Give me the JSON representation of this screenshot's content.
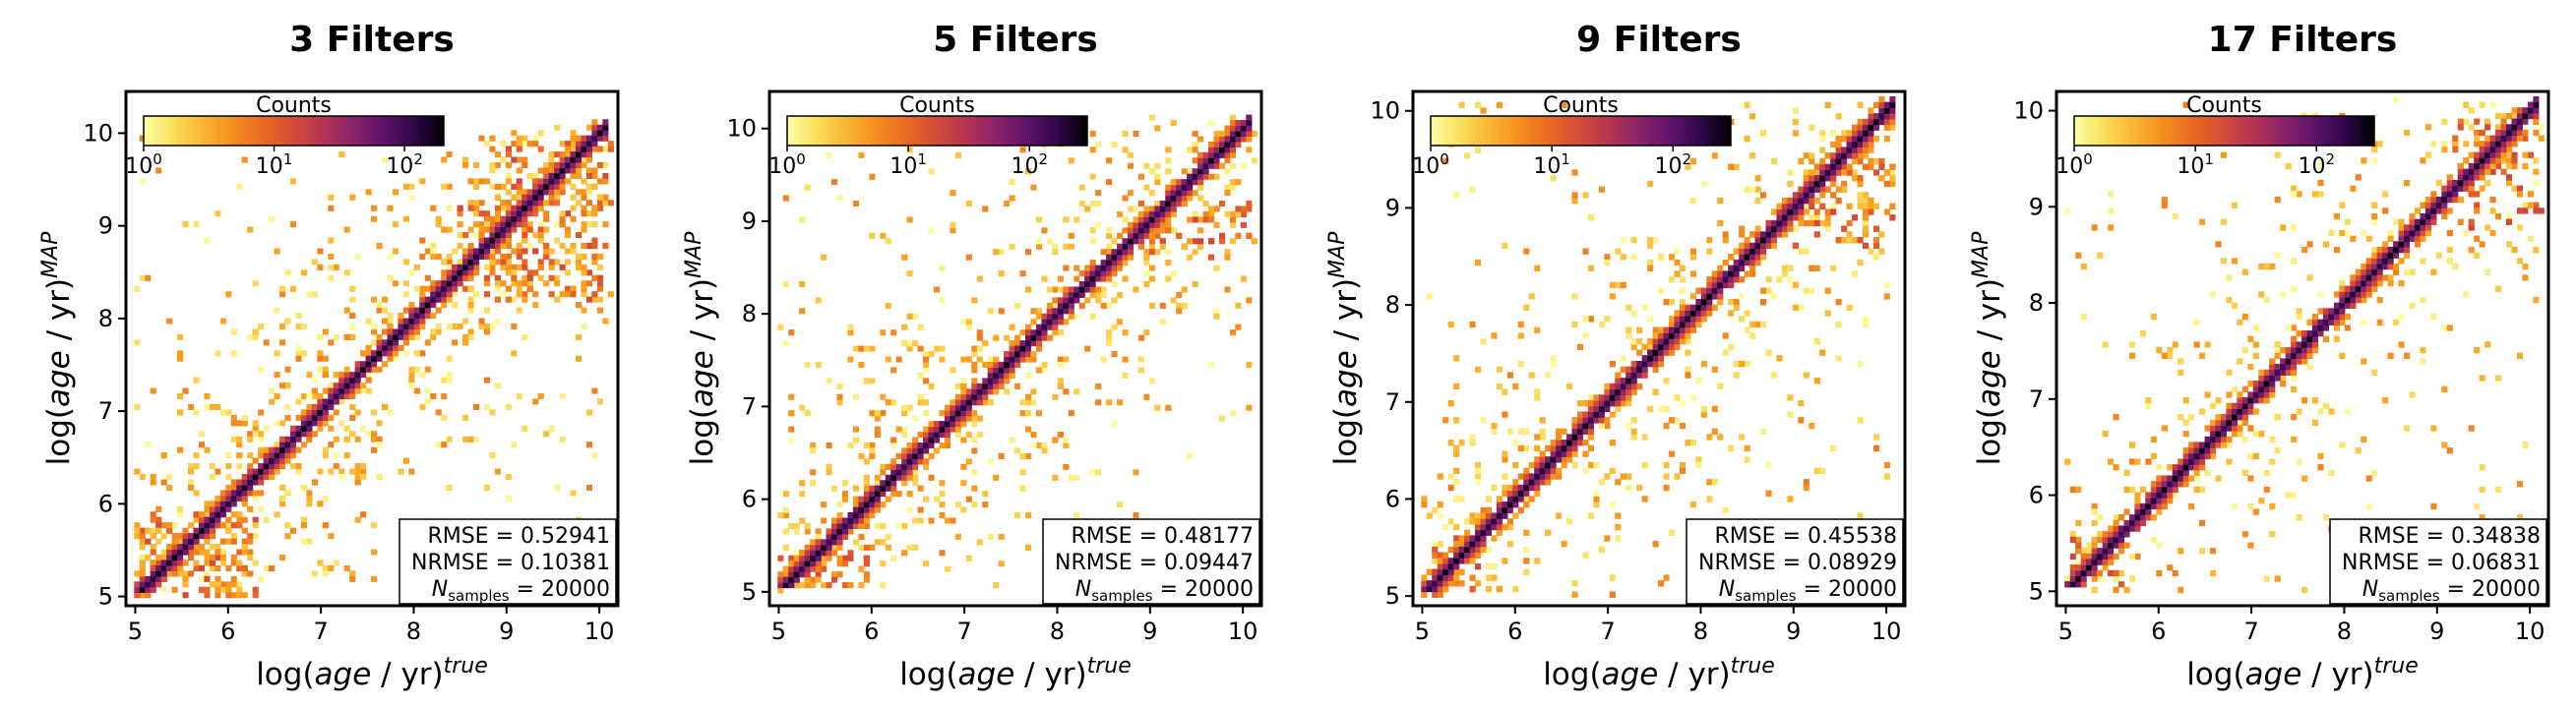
{
  "figure": {
    "xlabel": "log(age / yr)",
    "xlabel_sup": "true",
    "ylabel": "log(age / yr)",
    "ylabel_sup": "MAP"
  },
  "colorbar": {
    "label": "Counts",
    "ticks": [
      {
        "base": "10",
        "exp": "0"
      },
      {
        "base": "10",
        "exp": "1"
      },
      {
        "base": "10",
        "exp": "2"
      }
    ]
  },
  "stats_labels": {
    "rmse": "RMSE = ",
    "nrmse": "NRMSE = ",
    "n_main": "N",
    "n_sub": "samples",
    "n_eq": " = "
  },
  "chart_data": [
    {
      "type": "heatmap",
      "title": "3 Filters",
      "xlim": [
        4.9,
        10.2
      ],
      "ylim": [
        4.9,
        10.45
      ],
      "xticks": [
        5,
        6,
        7,
        8,
        9,
        10
      ],
      "yticks": [
        5,
        6,
        7,
        8,
        9,
        10
      ],
      "rmse": "0.52941",
      "nrmse": "0.10381",
      "n_samples": "20000",
      "colorbar_max": 200,
      "scatter_level": 0.95,
      "clusters": [
        {
          "x0": 5.0,
          "x1": 6.3,
          "y0": 5.0,
          "y1": 5.9,
          "d": 0.45
        },
        {
          "x0": 8.5,
          "x1": 10.1,
          "y0": 8.2,
          "y1": 9.3,
          "d": 0.4
        },
        {
          "x0": 9.0,
          "x1": 10.1,
          "y0": 9.3,
          "y1": 9.9,
          "d": 0.35
        }
      ]
    },
    {
      "type": "heatmap",
      "title": "5 Filters",
      "xlim": [
        4.9,
        10.2
      ],
      "ylim": [
        4.85,
        10.4
      ],
      "xticks": [
        5,
        6,
        7,
        8,
        9,
        10
      ],
      "yticks": [
        5,
        6,
        7,
        8,
        9,
        10
      ],
      "rmse": "0.48177",
      "nrmse": "0.09447",
      "n_samples": "20000",
      "colorbar_max": 300,
      "scatter_level": 0.8,
      "clusters": [
        {
          "x0": 5.0,
          "x1": 6.0,
          "y0": 5.0,
          "y1": 5.5,
          "d": 0.3
        },
        {
          "x0": 8.9,
          "x1": 10.1,
          "y0": 8.6,
          "y1": 9.2,
          "d": 0.35
        }
      ]
    },
    {
      "type": "heatmap",
      "title": "9 Filters",
      "xlim": [
        4.9,
        10.2
      ],
      "ylim": [
        4.9,
        10.2
      ],
      "xticks": [
        5,
        6,
        7,
        8,
        9,
        10
      ],
      "yticks": [
        5,
        6,
        7,
        8,
        9,
        10
      ],
      "rmse": "0.45538",
      "nrmse": "0.08929",
      "n_samples": "20000",
      "colorbar_max": 300,
      "scatter_level": 0.7,
      "clusters": [
        {
          "x0": 5.0,
          "x1": 5.6,
          "y0": 5.0,
          "y1": 5.6,
          "d": 0.25
        },
        {
          "x0": 9.0,
          "x1": 10.1,
          "y0": 8.6,
          "y1": 9.6,
          "d": 0.3
        }
      ]
    },
    {
      "type": "heatmap",
      "title": "17 Filters",
      "xlim": [
        4.9,
        10.2
      ],
      "ylim": [
        4.85,
        10.2
      ],
      "xticks": [
        5,
        6,
        7,
        8,
        9,
        10
      ],
      "yticks": [
        5,
        6,
        7,
        8,
        9,
        10
      ],
      "rmse": "0.34838",
      "nrmse": "0.06831",
      "n_samples": "20000",
      "colorbar_max": 300,
      "scatter_level": 0.55,
      "clusters": [
        {
          "x0": 5.0,
          "x1": 5.6,
          "y0": 5.0,
          "y1": 5.6,
          "d": 0.2
        },
        {
          "x0": 9.2,
          "x1": 10.1,
          "y0": 8.8,
          "y1": 9.9,
          "d": 0.25
        }
      ]
    }
  ]
}
